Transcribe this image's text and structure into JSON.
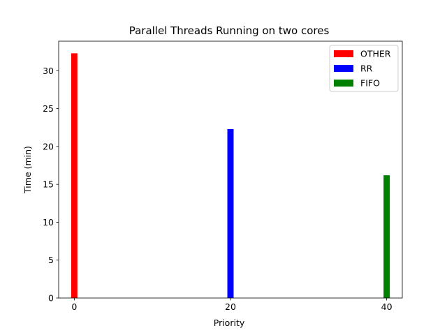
{
  "chart_data": {
    "type": "bar",
    "title": "Parallel Threads Running on two cores",
    "xlabel": "Priority",
    "ylabel": "Time (min)",
    "xlim": [
      -2,
      42
    ],
    "ylim": [
      0,
      33.9
    ],
    "xticks": [
      0,
      20,
      40
    ],
    "yticks": [
      0,
      5,
      10,
      15,
      20,
      25,
      30
    ],
    "bar_width": 0.8,
    "grid": false,
    "legend_position": "top-right",
    "series": [
      {
        "name": "OTHER",
        "color": "#ff0000",
        "x": [
          0
        ],
        "values": [
          32.3
        ]
      },
      {
        "name": "RR",
        "color": "#0000ff",
        "x": [
          20
        ],
        "values": [
          22.3
        ]
      },
      {
        "name": "FIFO",
        "color": "#008000",
        "x": [
          40
        ],
        "values": [
          16.2
        ]
      }
    ]
  }
}
